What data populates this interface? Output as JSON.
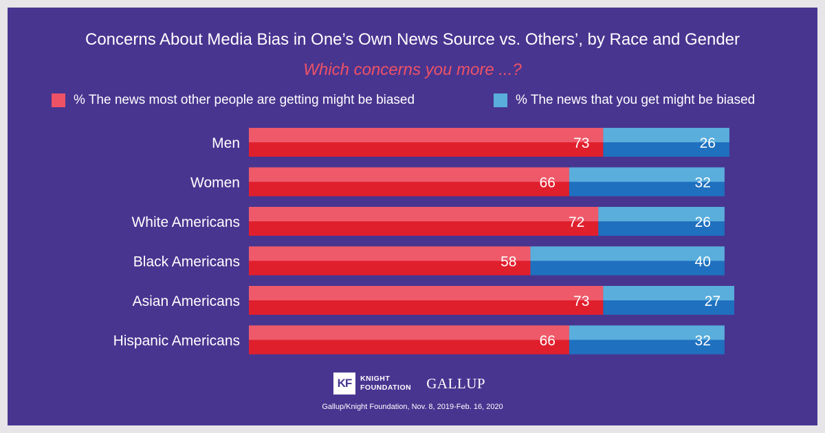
{
  "colors": {
    "background": "#e7e5e8",
    "panel": "#483590",
    "accent_red": "#ef5265",
    "red_top": "#ef5a6a",
    "red_bottom": "#e01f2d",
    "blue_top": "#5aaedc",
    "blue_bottom": "#1f70bf",
    "blue_swatch": "#5aaedc"
  },
  "logos": {
    "kf_mark": "KF",
    "kf_line1": "KNIGHT",
    "kf_line2": "FOUNDATION",
    "gallup": "GALLUP"
  },
  "source": "Gallup/Knight Foundation, Nov. 8, 2019-Feb. 16, 2020",
  "chart_data": {
    "type": "bar",
    "orientation": "horizontal",
    "stacked": true,
    "title": "Concerns About Media Bias in One’s Own News Source vs. Others’, by Race and Gender",
    "subtitle": "Which concerns you more ...?",
    "categories": [
      "Men",
      "Women",
      "White Americans",
      "Black Americans",
      "Asian Americans",
      "Hispanic Americans"
    ],
    "series": [
      {
        "name": "% The news most other people are getting might be biased",
        "values": [
          73,
          66,
          72,
          58,
          73,
          66
        ]
      },
      {
        "name": "% The news that you get might be biased",
        "values": [
          26,
          32,
          26,
          40,
          27,
          32
        ]
      }
    ],
    "xlim": [
      0,
      100
    ],
    "grid": false,
    "legend": "top"
  }
}
